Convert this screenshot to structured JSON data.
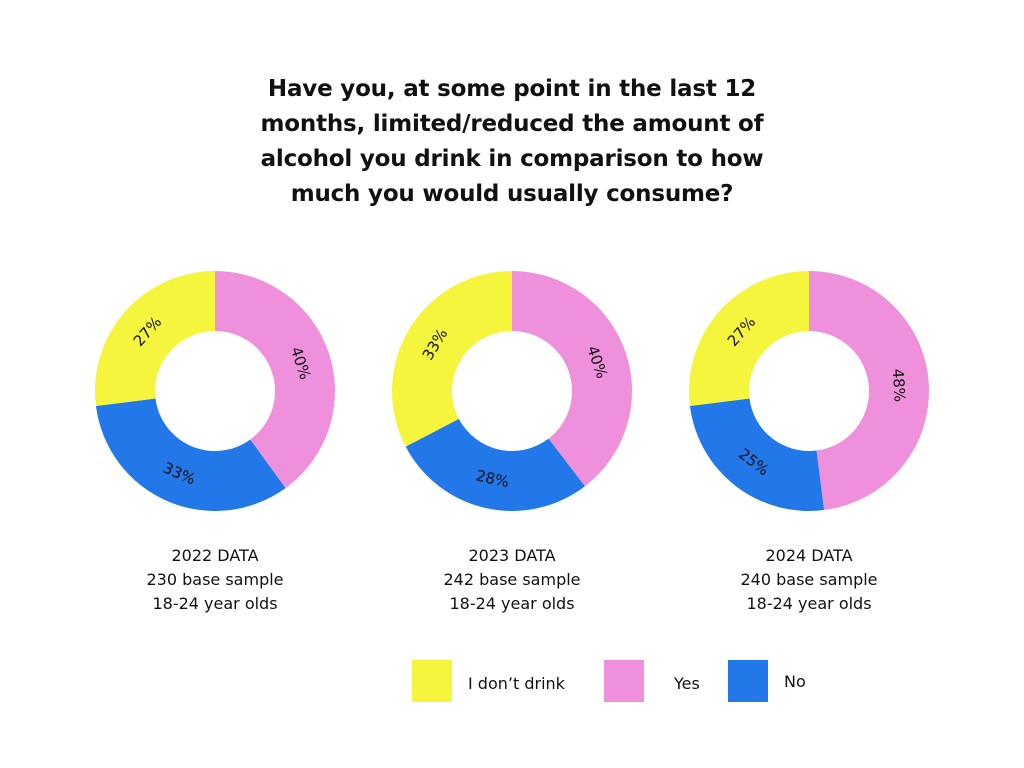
{
  "title_lines": [
    "Have you, at some point in the last 12",
    "months, limited/reduced the amount of",
    "alcohol you drink in comparison to how",
    "much you would usually consume?"
  ],
  "colors": {
    "dont_drink": "#f5f53d",
    "yes": "#ee90dc",
    "no": "#2277e9"
  },
  "chart_data": [
    {
      "type": "pie",
      "categories": [
        "Yes",
        "No",
        "I don’t drink"
      ],
      "values": [
        40,
        33,
        27
      ],
      "labels": [
        "40%",
        "33%",
        "27%"
      ],
      "caption": [
        "2022 DATA",
        "230 base sample",
        "18-24 year olds"
      ]
    },
    {
      "type": "pie",
      "categories": [
        "Yes",
        "No",
        "I don’t drink"
      ],
      "values": [
        40,
        28,
        33
      ],
      "labels": [
        "40%",
        "28%",
        "33%"
      ],
      "caption": [
        "2023 DATA",
        "242 base sample",
        "18-24 year olds"
      ]
    },
    {
      "type": "pie",
      "categories": [
        "Yes",
        "No",
        "I don’t drink"
      ],
      "values": [
        48,
        25,
        27
      ],
      "labels": [
        "48%",
        "25%",
        "27%"
      ],
      "caption": [
        "2024 DATA",
        "240 base sample",
        "18-24 year olds"
      ]
    }
  ],
  "legend": [
    {
      "label": "I don’t drink",
      "color": "#f5f53d"
    },
    {
      "label": "Yes",
      "color": "#ee90dc"
    },
    {
      "label": "No",
      "color": "#2277e9"
    }
  ]
}
